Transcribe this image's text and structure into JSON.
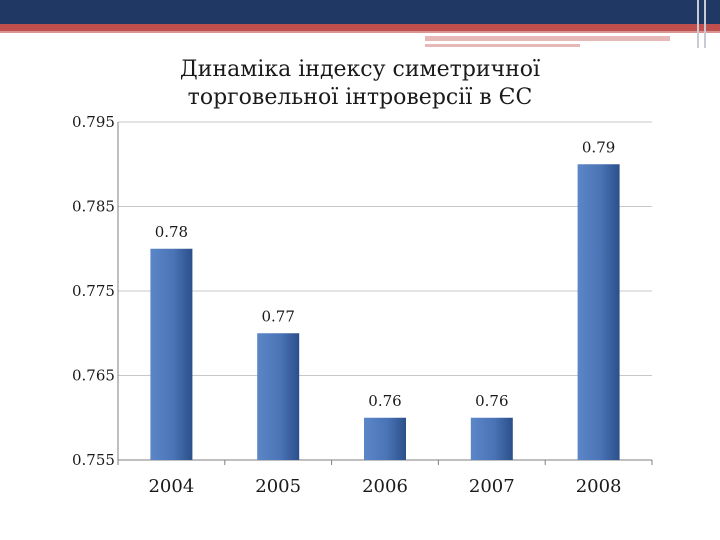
{
  "colors": {
    "header_dark": "#1f3864",
    "header_accent": "#c0504d",
    "bar_fill": "#4a74b6",
    "bar_shadow": "#2b4f8a",
    "gridline": "#c8c8c8",
    "axis": "#7f7f7f"
  },
  "chart_data": {
    "type": "bar",
    "title_lines": [
      "Динаміка індексу симетричної",
      "торговельної інтроверсії в ЄС"
    ],
    "categories": [
      "2004",
      "2005",
      "2006",
      "2007",
      "2008"
    ],
    "values": [
      0.78,
      0.77,
      0.76,
      0.76,
      0.79
    ],
    "data_labels": [
      "0.78",
      "0.77",
      "0.76",
      "0.76",
      "0.79"
    ],
    "y_ticks": [
      "0.755",
      "0.765",
      "0.775",
      "0.785",
      "0.795"
    ],
    "ylim": [
      0.755,
      0.795
    ],
    "grid": true,
    "legend": "none"
  }
}
